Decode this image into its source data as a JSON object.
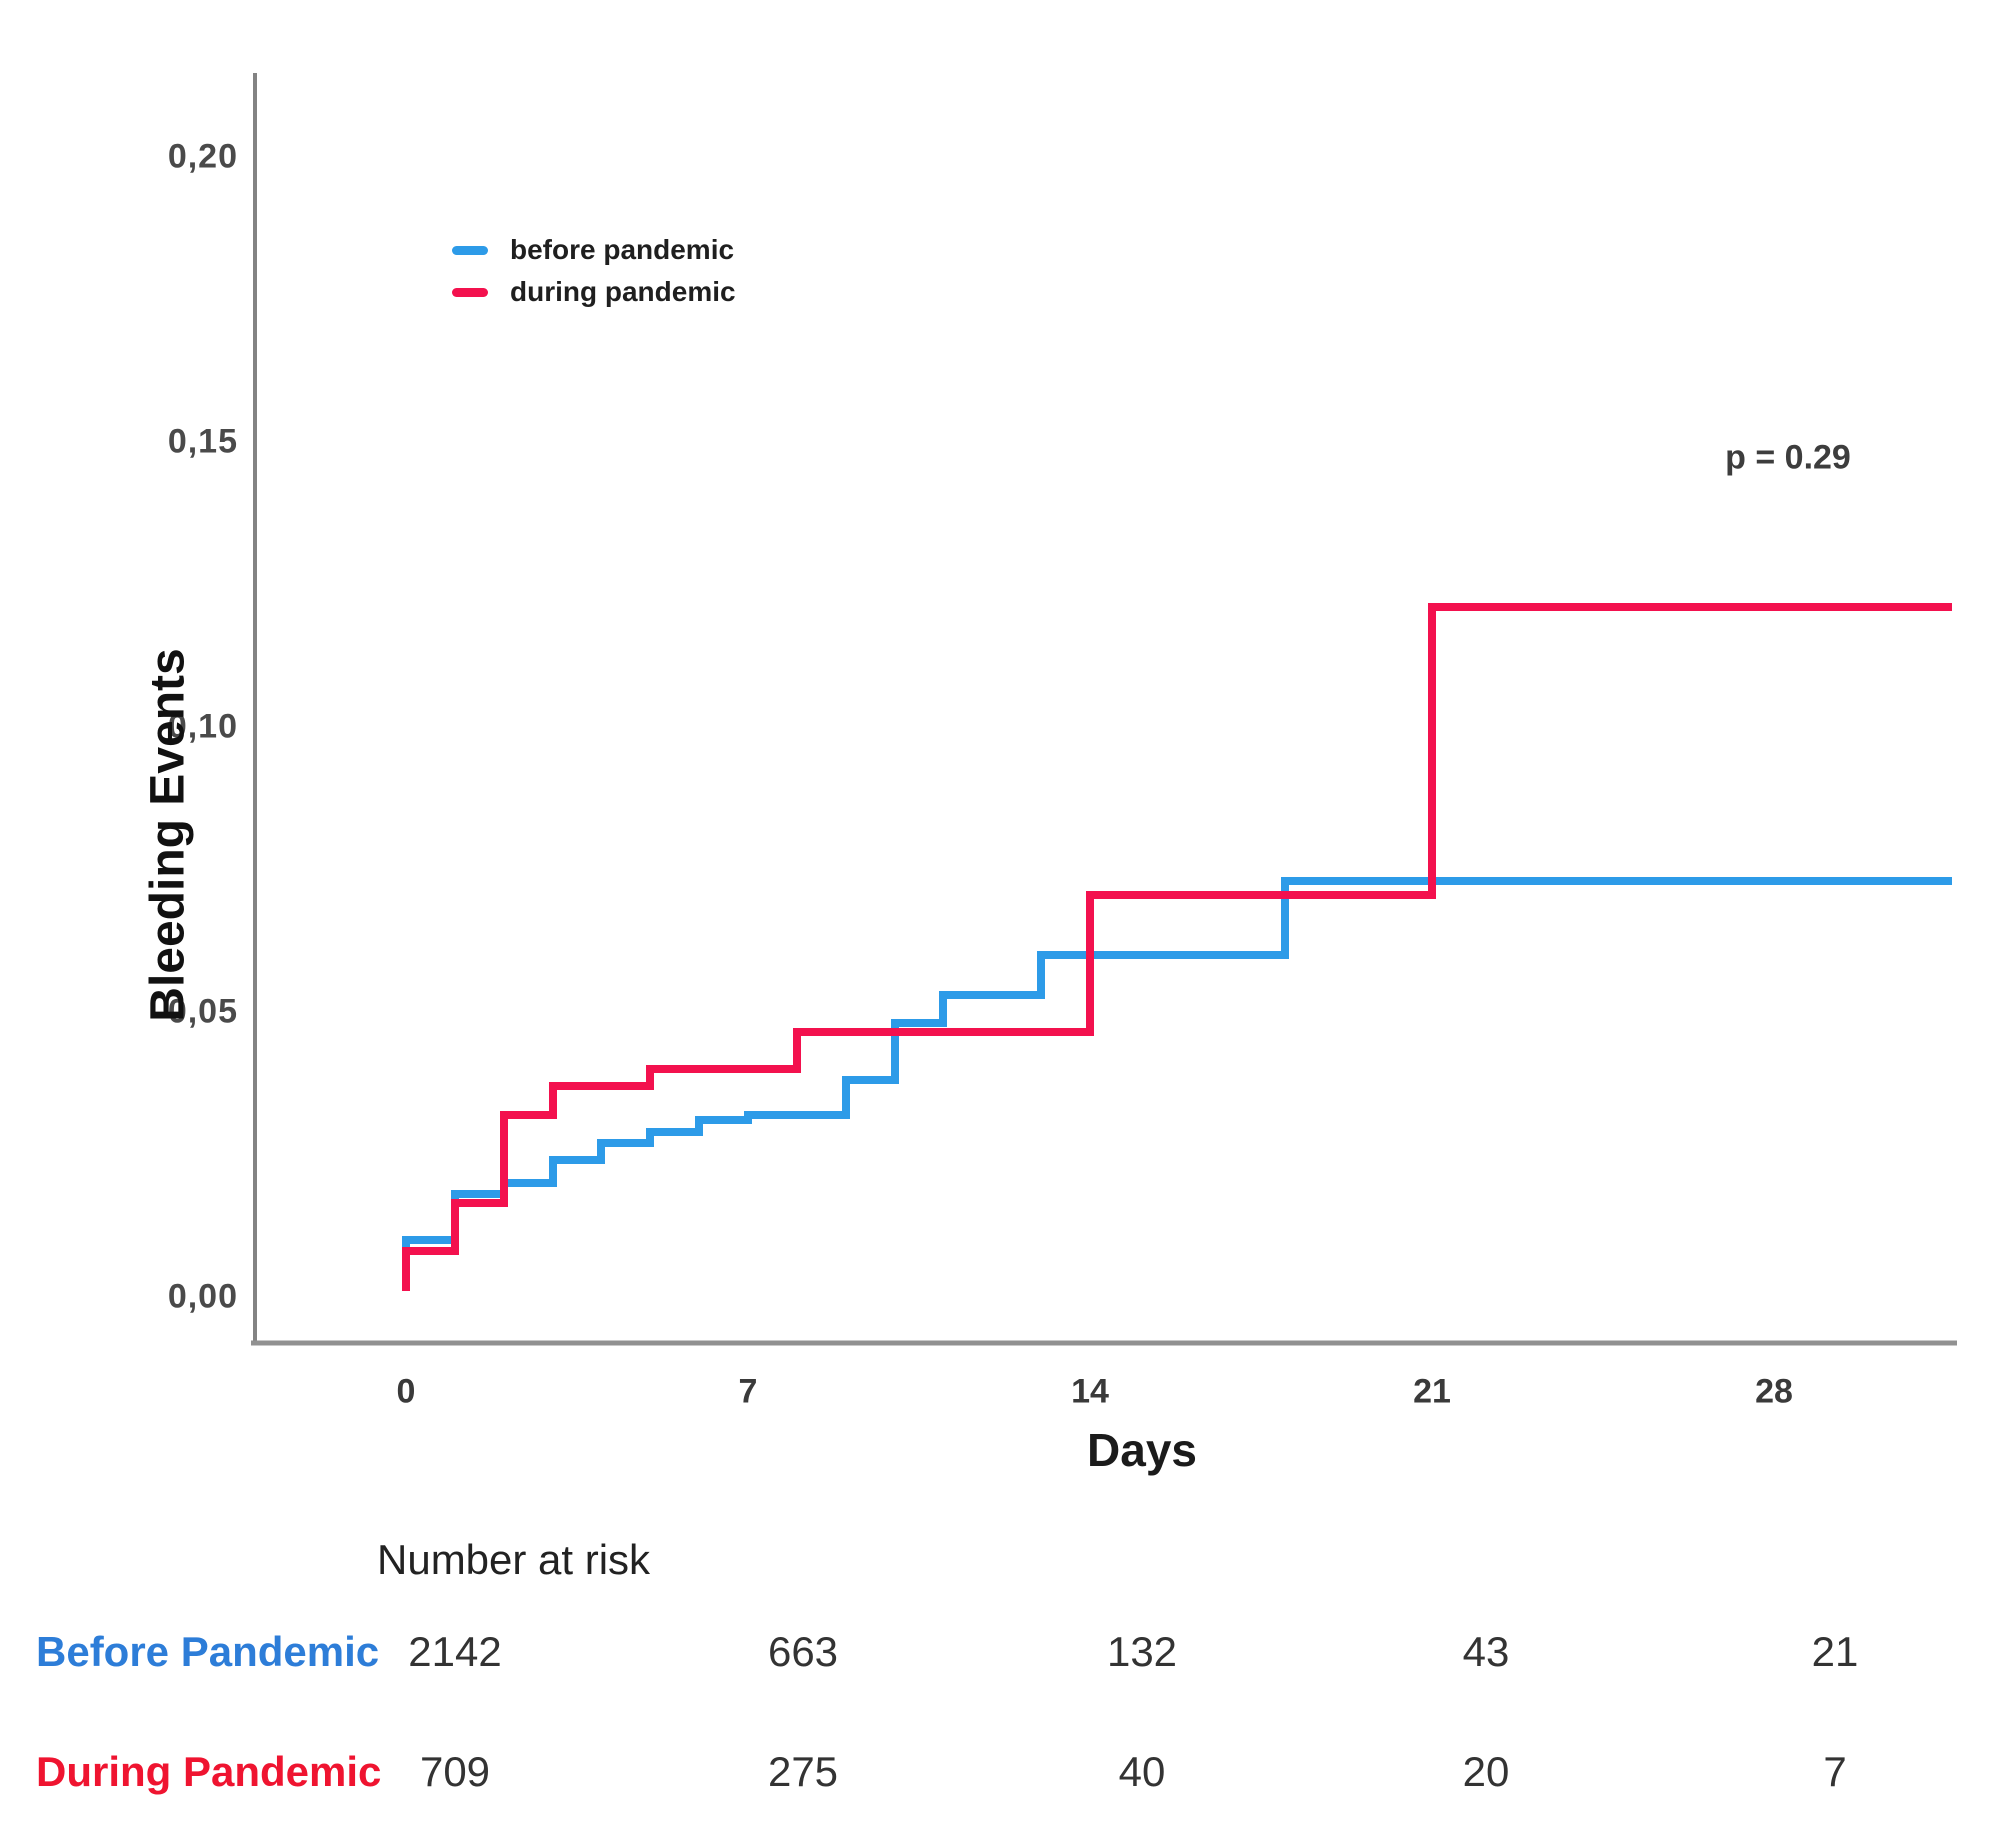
{
  "chart": {
    "y_axis": {
      "title": "Bleeding Events",
      "ticks": [
        "0,20",
        "0,15",
        "0,10",
        "0,05",
        "0,00"
      ]
    },
    "x_axis": {
      "title": "Days",
      "ticks": [
        "0",
        "7",
        "14",
        "21",
        "28"
      ]
    },
    "p_value": "p = 0.29",
    "legend": [
      {
        "label": "before pandemic",
        "color": "#2D9BE8"
      },
      {
        "label": "during pandemic",
        "color": "#F3114E"
      }
    ]
  },
  "chart_data": {
    "type": "line",
    "subtype": "kaplan-meier-step",
    "title": "",
    "xlabel": "Days",
    "ylabel": "Bleeding Events",
    "x_ticks": [
      0,
      7,
      14,
      21,
      28
    ],
    "y_ticks": [
      0.0,
      0.05,
      0.1,
      0.15,
      0.2
    ],
    "xlim": [
      0,
      31.7
    ],
    "ylim": [
      0,
      0.215
    ],
    "grid": false,
    "legend_position": "upper-left-inside",
    "annotation": "p = 0.29",
    "series": [
      {
        "name": "before pandemic",
        "color": "#2D9BE8",
        "start": [
          0,
          0.005
        ],
        "steps": [
          [
            0,
            0.01
          ],
          [
            1,
            0.018
          ],
          [
            2,
            0.02
          ],
          [
            3,
            0.024
          ],
          [
            4,
            0.027
          ],
          [
            5,
            0.029
          ],
          [
            6,
            0.031
          ],
          [
            7,
            0.032
          ],
          [
            9,
            0.038
          ],
          [
            10,
            0.048
          ],
          [
            11,
            0.053
          ],
          [
            13,
            0.06
          ],
          [
            18,
            0.073
          ]
        ],
        "end_day": 31.65,
        "final_value": 0.073
      },
      {
        "name": "during pandemic",
        "color": "#F3114E",
        "start": [
          0,
          0.001
        ],
        "steps": [
          [
            0,
            0.008
          ],
          [
            1,
            0.0165
          ],
          [
            2,
            0.032
          ],
          [
            3,
            0.037
          ],
          [
            5,
            0.04
          ],
          [
            8,
            0.0465
          ],
          [
            14,
            0.0705
          ],
          [
            21,
            0.121
          ]
        ],
        "end_day": 31.65,
        "final_value": 0.121
      }
    ]
  },
  "risk_table": {
    "header": "Number at risk",
    "columns_days": [
      0,
      7,
      14,
      21,
      28
    ],
    "rows": [
      {
        "label": "Before Pandemic",
        "color": "#2D7DD8",
        "values": [
          "2142",
          "663",
          "132",
          "43",
          "21"
        ]
      },
      {
        "label": "During Pandemic",
        "color": "#EF1430",
        "values": [
          "709",
          "275",
          "40",
          "20",
          "7"
        ]
      }
    ]
  }
}
